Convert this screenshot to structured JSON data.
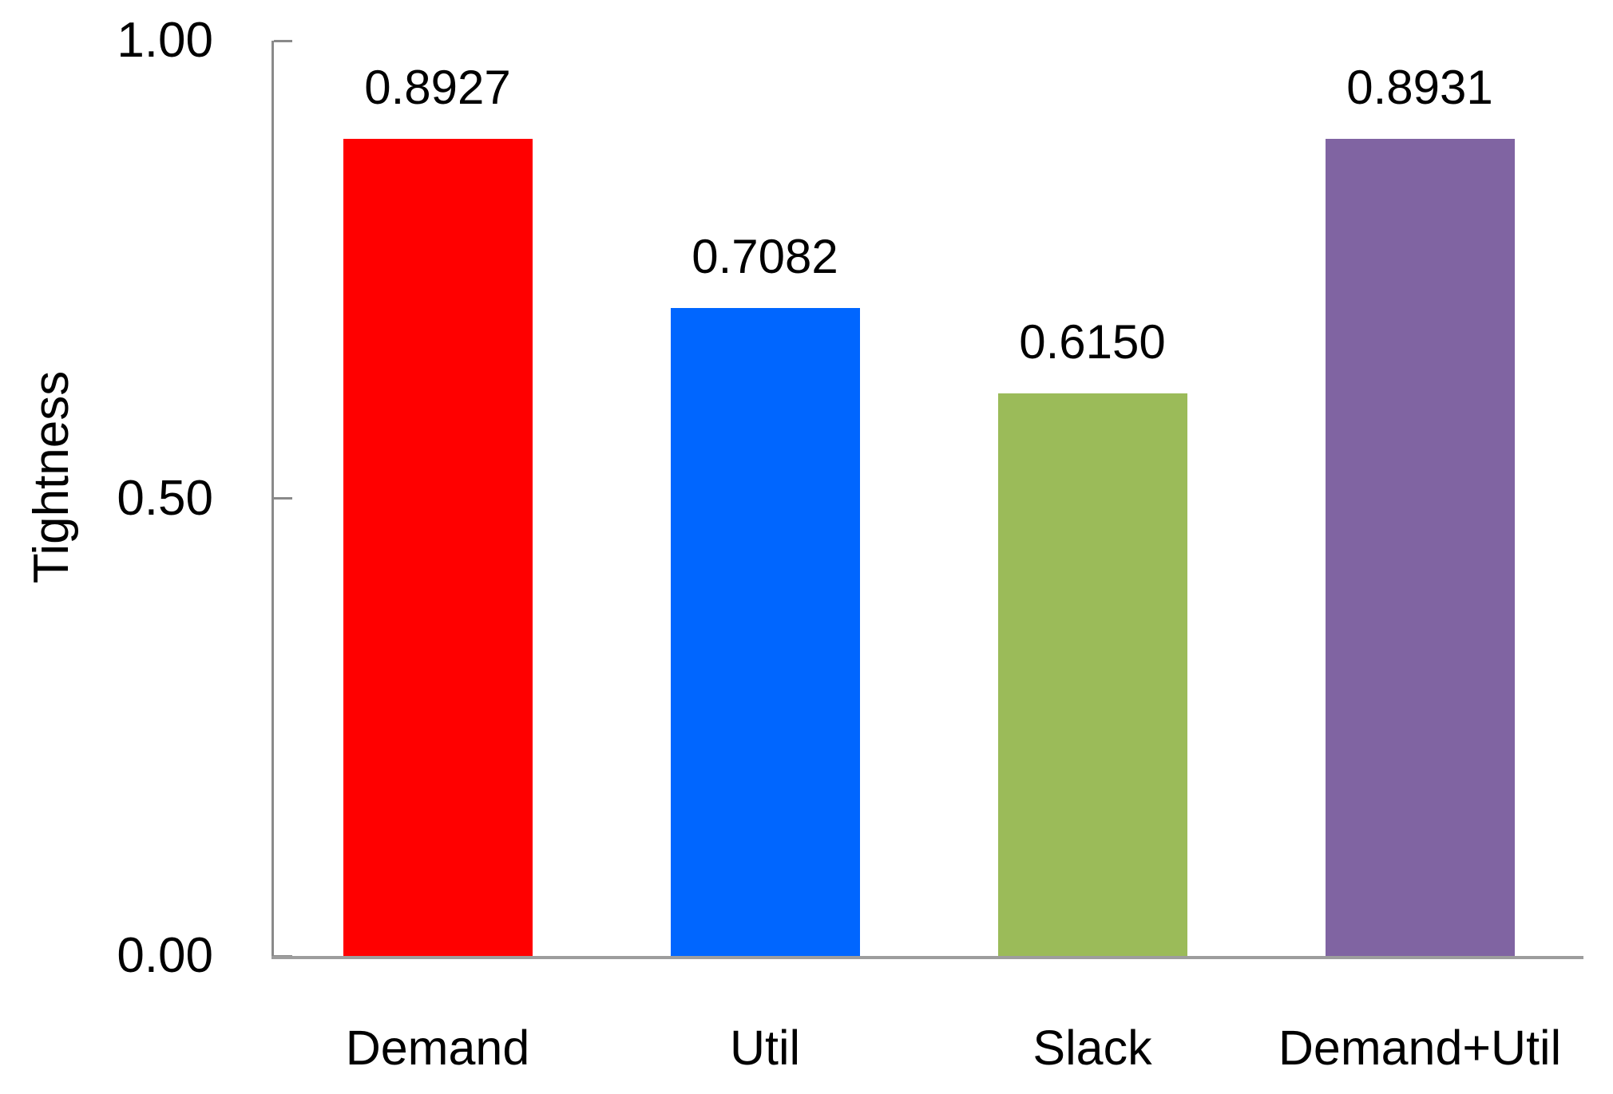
{
  "chart_data": {
    "type": "bar",
    "title": "",
    "xlabel": "",
    "ylabel": "Tightness",
    "categories": [
      "Demand",
      "Util",
      "Slack",
      "Demand+Util"
    ],
    "values": [
      0.8927,
      0.7082,
      0.615,
      0.8931
    ],
    "value_labels": [
      "0.8927",
      "0.7082",
      "0.6150",
      "0.8931"
    ],
    "bar_colors": [
      "#ff0000",
      "#0066ff",
      "#9bbb59",
      "#8064a2"
    ],
    "ylim": [
      0,
      1
    ],
    "yticks": [
      {
        "value": 0.0,
        "label": "0.00"
      },
      {
        "value": 0.5,
        "label": "0.50"
      },
      {
        "value": 1.0,
        "label": "1.00"
      }
    ],
    "grid": false,
    "legend_position": "none",
    "axis_color": "#8a8a8a",
    "text_color": "#000000"
  }
}
